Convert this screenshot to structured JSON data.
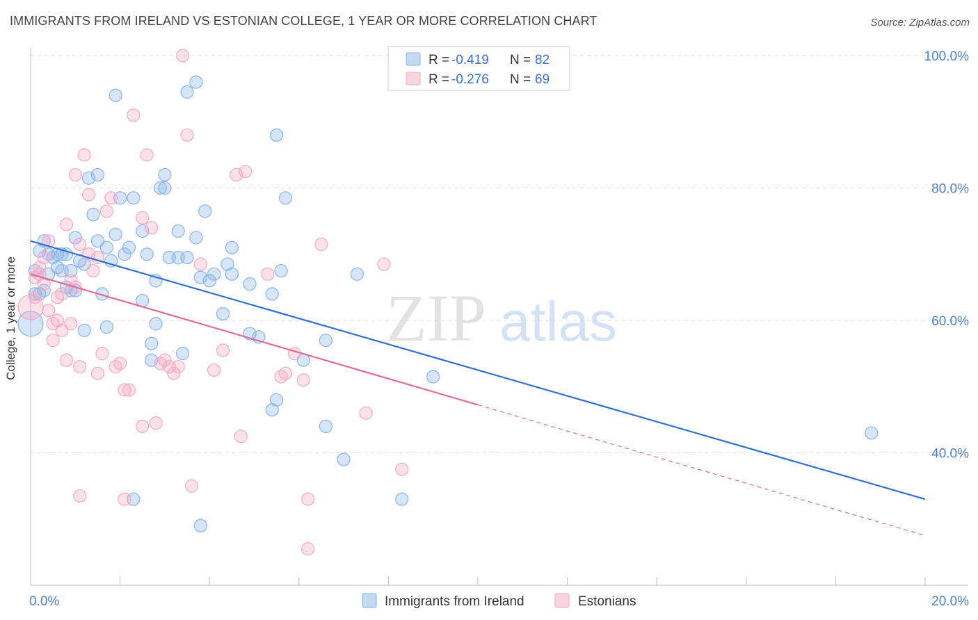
{
  "title": "IMMIGRANTS FROM IRELAND VS ESTONIAN COLLEGE, 1 YEAR OR MORE CORRELATION CHART",
  "source": "Source: ZipAtlas.com",
  "watermark": {
    "zip": "ZIP",
    "atlas": "atlas"
  },
  "chart_data": {
    "type": "scatter",
    "ylabel": "College, 1 year or more",
    "xlim": [
      0,
      20
    ],
    "ylim": [
      20,
      100
    ],
    "x_tick_labels": [
      "0.0%",
      "20.0%"
    ],
    "y_ticks": [
      40,
      60,
      80,
      100
    ],
    "y_tick_labels": [
      "40.0%",
      "60.0%",
      "80.0%",
      "100.0%"
    ],
    "grid": true,
    "legend_position": "top-center",
    "stats": [
      {
        "r_label": "R = ",
        "r_value": "-0.419",
        "n_label": "N = ",
        "n_value": "82"
      },
      {
        "r_label": "R = ",
        "r_value": "-0.276",
        "n_label": "N = ",
        "n_value": "69"
      }
    ],
    "series": [
      {
        "name": "Immigrants from Ireland",
        "color": "#8ab4e8",
        "line_color": "#2f6fcf",
        "trend": {
          "x0": 0,
          "y0": 72.0,
          "x1": 20,
          "y1": 33.0,
          "dash_from": null
        },
        "points": [
          [
            0.1,
            67.5
          ],
          [
            0.1,
            64.0
          ],
          [
            0.2,
            70.5
          ],
          [
            0.3,
            72.0
          ],
          [
            0.3,
            64.5
          ],
          [
            0.4,
            70.0
          ],
          [
            0.4,
            67.0
          ],
          [
            0.5,
            69.5
          ],
          [
            0.6,
            68.0
          ],
          [
            0.7,
            67.5
          ],
          [
            0.7,
            70.0
          ],
          [
            0.8,
            70.0
          ],
          [
            0.8,
            65.0
          ],
          [
            0.9,
            64.5
          ],
          [
            1.0,
            72.5
          ],
          [
            1.1,
            69.0
          ],
          [
            1.2,
            68.5
          ],
          [
            1.2,
            58.5
          ],
          [
            1.3,
            81.5
          ],
          [
            1.4,
            76.0
          ],
          [
            1.5,
            82.0
          ],
          [
            1.6,
            64.0
          ],
          [
            1.7,
            59.0
          ],
          [
            1.7,
            71.0
          ],
          [
            1.8,
            69.0
          ],
          [
            1.9,
            94.0
          ],
          [
            1.9,
            73.0
          ],
          [
            2.0,
            78.5
          ],
          [
            2.1,
            70.0
          ],
          [
            2.2,
            71.0
          ],
          [
            2.3,
            78.5
          ],
          [
            2.5,
            63.0
          ],
          [
            2.5,
            73.5
          ],
          [
            2.6,
            70.0
          ],
          [
            2.7,
            56.5
          ],
          [
            2.7,
            54.0
          ],
          [
            2.8,
            66.0
          ],
          [
            2.9,
            80.0
          ],
          [
            3.0,
            82.0
          ],
          [
            3.0,
            80.0
          ],
          [
            3.1,
            69.5
          ],
          [
            3.3,
            73.5
          ],
          [
            3.3,
            69.5
          ],
          [
            3.4,
            55.0
          ],
          [
            3.5,
            69.5
          ],
          [
            3.5,
            94.5
          ],
          [
            3.7,
            96.0
          ],
          [
            3.7,
            72.5
          ],
          [
            3.8,
            66.5
          ],
          [
            3.9,
            76.5
          ],
          [
            4.0,
            66.0
          ],
          [
            4.3,
            61.0
          ],
          [
            4.4,
            68.5
          ],
          [
            4.5,
            67.0
          ],
          [
            4.5,
            71.0
          ],
          [
            4.9,
            65.5
          ],
          [
            4.9,
            58.0
          ],
          [
            5.1,
            57.5
          ],
          [
            5.5,
            88.0
          ],
          [
            5.4,
            64.0
          ],
          [
            5.6,
            67.5
          ],
          [
            5.7,
            78.5
          ],
          [
            5.5,
            48.0
          ],
          [
            5.4,
            46.5
          ],
          [
            6.1,
            54.0
          ],
          [
            6.6,
            57.0
          ],
          [
            6.6,
            44.0
          ],
          [
            7.0,
            39.0
          ],
          [
            7.3,
            67.0
          ],
          [
            8.3,
            33.0
          ],
          [
            9.0,
            51.5
          ],
          [
            2.3,
            33.0
          ],
          [
            3.8,
            29.0
          ],
          [
            18.8,
            43.0
          ],
          [
            0.0,
            59.5
          ],
          [
            0.6,
            70.0
          ],
          [
            1.5,
            72.0
          ],
          [
            2.8,
            59.5
          ],
          [
            4.1,
            67.0
          ],
          [
            0.9,
            67.5
          ],
          [
            1.0,
            64.5
          ],
          [
            0.2,
            64.0
          ]
        ]
      },
      {
        "name": "Estonians",
        "color": "#f4a9c3",
        "line_color": "#e06b94",
        "trend": {
          "x0": 0,
          "y0": 67.0,
          "x1": 20,
          "y1": 27.5,
          "dash_from": 10
        },
        "points": [
          [
            0.0,
            62.0
          ],
          [
            0.1,
            66.5
          ],
          [
            0.1,
            63.5
          ],
          [
            0.2,
            67.0
          ],
          [
            0.3,
            69.5
          ],
          [
            0.3,
            65.5
          ],
          [
            0.4,
            61.5
          ],
          [
            0.5,
            59.5
          ],
          [
            0.5,
            57.0
          ],
          [
            0.6,
            63.5
          ],
          [
            0.6,
            60.0
          ],
          [
            0.7,
            58.5
          ],
          [
            0.8,
            74.5
          ],
          [
            0.8,
            54.0
          ],
          [
            0.9,
            66.0
          ],
          [
            1.0,
            65.0
          ],
          [
            1.0,
            82.0
          ],
          [
            1.1,
            71.5
          ],
          [
            1.1,
            53.0
          ],
          [
            1.2,
            85.0
          ],
          [
            1.3,
            70.0
          ],
          [
            1.3,
            79.0
          ],
          [
            1.4,
            67.5
          ],
          [
            1.5,
            69.5
          ],
          [
            1.5,
            52.0
          ],
          [
            1.6,
            55.0
          ],
          [
            1.7,
            76.5
          ],
          [
            1.8,
            78.5
          ],
          [
            1.9,
            53.0
          ],
          [
            2.0,
            53.5
          ],
          [
            2.1,
            49.5
          ],
          [
            2.2,
            49.5
          ],
          [
            2.1,
            33.0
          ],
          [
            2.3,
            91.0
          ],
          [
            2.5,
            44.0
          ],
          [
            2.5,
            75.5
          ],
          [
            2.6,
            85.0
          ],
          [
            2.7,
            74.0
          ],
          [
            2.8,
            44.5
          ],
          [
            2.9,
            53.5
          ],
          [
            3.0,
            54.0
          ],
          [
            3.1,
            53.0
          ],
          [
            3.2,
            52.0
          ],
          [
            3.3,
            53.0
          ],
          [
            3.4,
            100.0
          ],
          [
            3.5,
            88.0
          ],
          [
            3.6,
            35.0
          ],
          [
            3.8,
            68.5
          ],
          [
            4.1,
            52.5
          ],
          [
            4.3,
            55.5
          ],
          [
            4.6,
            82.0
          ],
          [
            4.7,
            42.5
          ],
          [
            4.8,
            82.5
          ],
          [
            5.3,
            67.0
          ],
          [
            5.6,
            51.5
          ],
          [
            5.7,
            52.0
          ],
          [
            5.9,
            55.0
          ],
          [
            6.2,
            25.5
          ],
          [
            6.1,
            51.0
          ],
          [
            6.2,
            33.0
          ],
          [
            6.5,
            71.5
          ],
          [
            7.5,
            46.0
          ],
          [
            7.9,
            68.5
          ],
          [
            8.3,
            37.5
          ],
          [
            1.1,
            33.5
          ],
          [
            0.4,
            72.0
          ],
          [
            0.7,
            64.0
          ],
          [
            0.9,
            59.5
          ],
          [
            0.2,
            68.0
          ]
        ]
      }
    ]
  }
}
